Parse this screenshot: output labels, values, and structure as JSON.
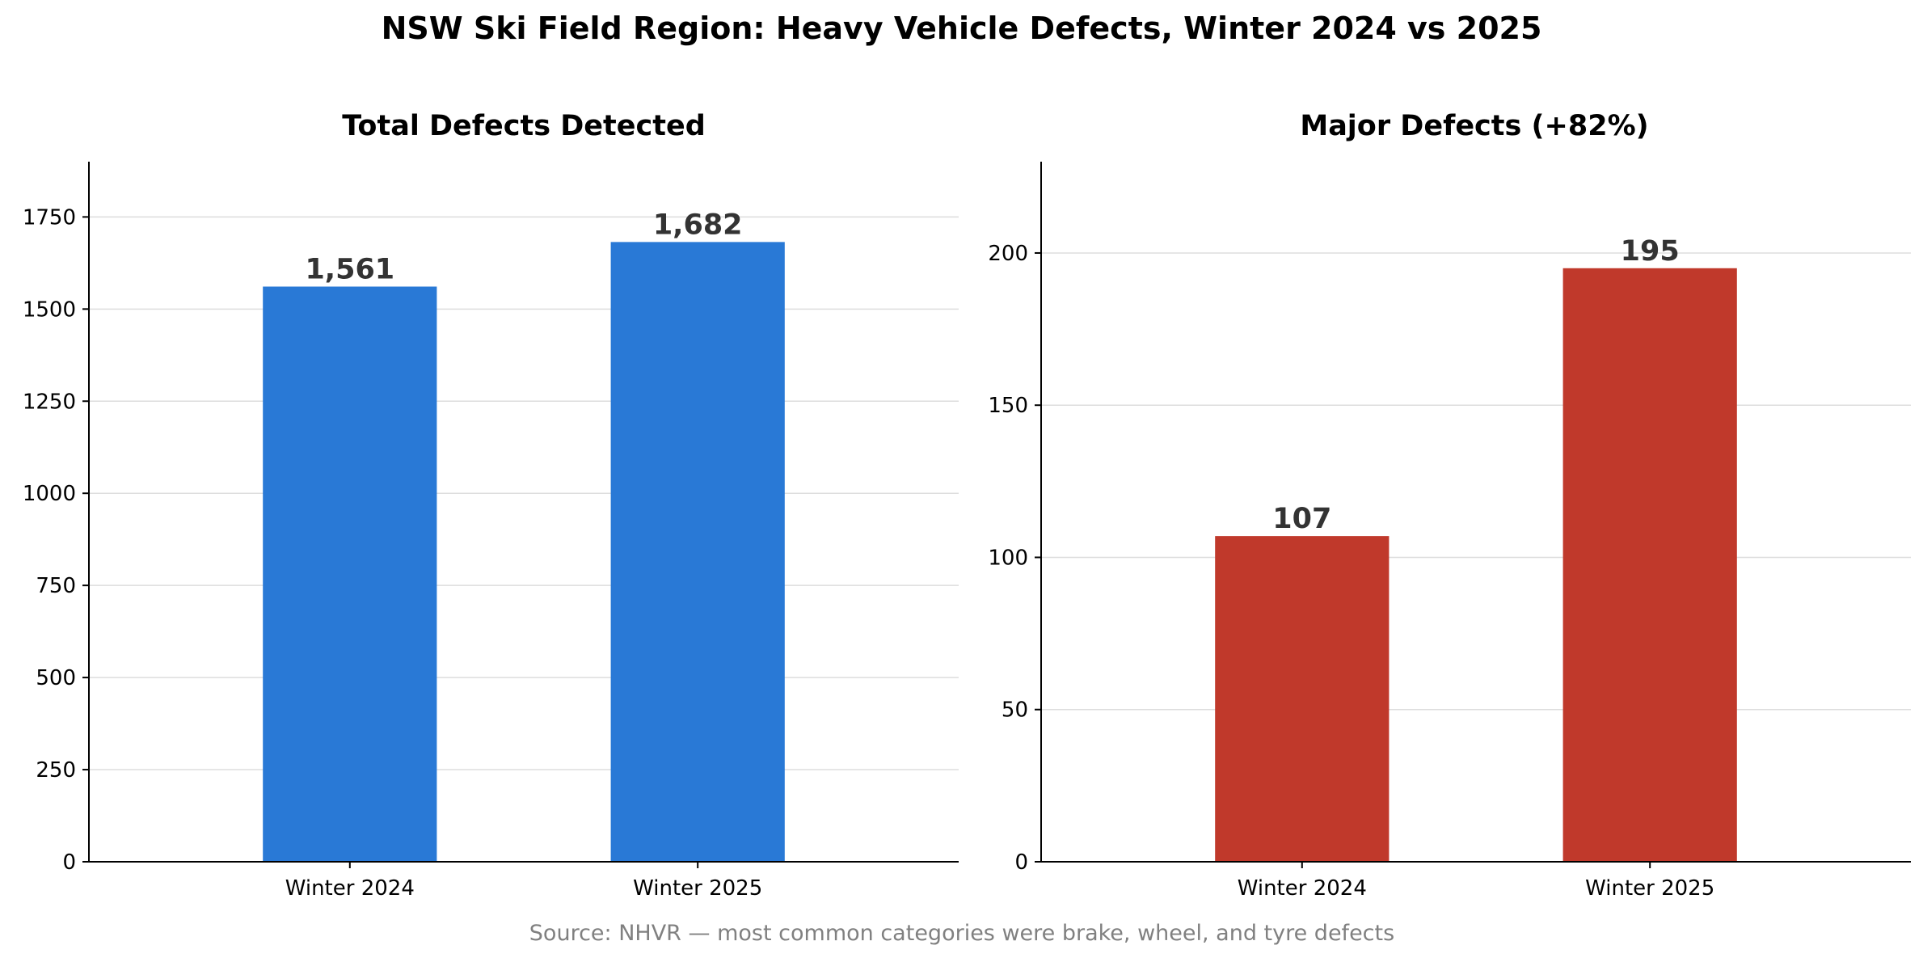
{
  "figure": {
    "title": "NSW Ski Field Region: Heavy Vehicle Defects, Winter 2024 vs 2025",
    "source_note": "Source: NHVR — most common categories were brake, wheel, and tyre defects"
  },
  "chart_data": [
    {
      "type": "bar",
      "title": "Total Defects Detected",
      "categories": [
        "Winter 2024",
        "Winter 2025"
      ],
      "values": [
        1561,
        1682
      ],
      "value_labels": [
        "1,561",
        "1,682"
      ],
      "ylim": [
        0,
        1900
      ],
      "yticks": [
        0,
        250,
        500,
        750,
        1000,
        1250,
        1500,
        1750
      ],
      "ytick_labels": [
        "0",
        "250",
        "500",
        "750",
        "1000",
        "1250",
        "1500",
        "1750"
      ],
      "xlabel": "",
      "ylabel": "",
      "grid": "y",
      "color": "#2979d6"
    },
    {
      "type": "bar",
      "title": "Major Defects (+82%)",
      "categories": [
        "Winter 2024",
        "Winter 2025"
      ],
      "values": [
        107,
        195
      ],
      "value_labels": [
        "107",
        "195"
      ],
      "ylim": [
        0,
        230
      ],
      "yticks": [
        0,
        50,
        100,
        150,
        200
      ],
      "ytick_labels": [
        "0",
        "50",
        "100",
        "150",
        "200"
      ],
      "xlabel": "",
      "ylabel": "",
      "grid": "y",
      "color": "#c0392b"
    }
  ]
}
